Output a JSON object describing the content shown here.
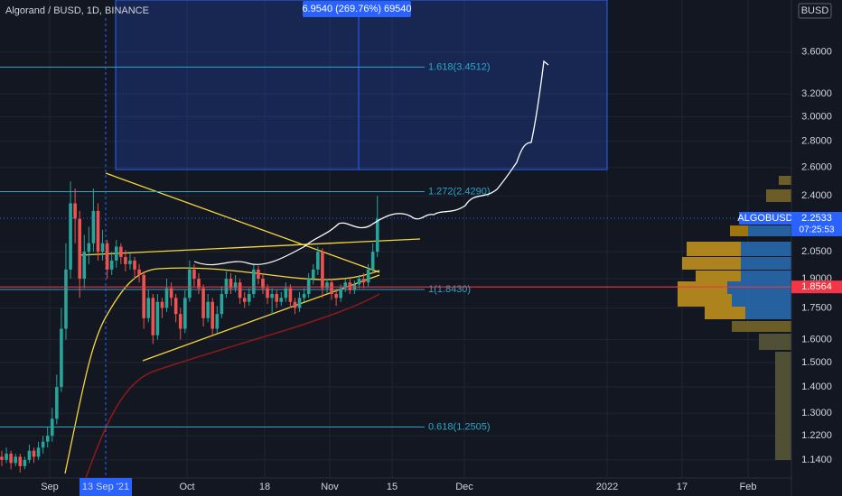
{
  "chart_data": {
    "type": "candlestick",
    "title": "Algorand / BUSD, 1D, BINANCE",
    "currency": "BUSD",
    "log_scale": true,
    "grid": true,
    "up_color": "#26a69a",
    "down_color": "#ef5350",
    "ylim": [
      1.056,
      4.17
    ],
    "yticks": [
      {
        "value": 1.14,
        "label": "1.1400"
      },
      {
        "value": 1.22,
        "label": "1.2200"
      },
      {
        "value": 1.3,
        "label": "1.3000"
      },
      {
        "value": 1.4,
        "label": "1.4000"
      },
      {
        "value": 1.5,
        "label": "1.5000"
      },
      {
        "value": 1.6,
        "label": "1.6000"
      },
      {
        "value": 1.75,
        "label": "1.7500"
      },
      {
        "value": 1.9,
        "label": "1.9000"
      },
      {
        "value": 2.05,
        "label": "2.0500"
      },
      {
        "value": 2.4,
        "label": "2.4000"
      },
      {
        "value": 2.6,
        "label": "2.6000"
      },
      {
        "value": 2.8,
        "label": "2.8000"
      },
      {
        "value": 3.0,
        "label": "3.0000"
      },
      {
        "value": 3.2,
        "label": "3.2000"
      },
      {
        "value": 3.6,
        "label": "3.6000"
      }
    ],
    "xticks": [
      "Sep",
      "13 Sep '21",
      "Oct",
      "18",
      "Nov",
      "15",
      "Dec",
      "2022",
      "17",
      "Feb"
    ],
    "series": [
      {
        "name": "ALGOBUSD",
        "values": [
          [
            1.15,
            1.17,
            1.12,
            1.14
          ],
          [
            1.14,
            1.18,
            1.13,
            1.16
          ],
          [
            1.16,
            1.17,
            1.11,
            1.13
          ],
          [
            1.13,
            1.16,
            1.12,
            1.15
          ],
          [
            1.15,
            1.16,
            1.1,
            1.12
          ],
          [
            1.12,
            1.15,
            1.11,
            1.14
          ],
          [
            1.14,
            1.19,
            1.13,
            1.17
          ],
          [
            1.17,
            1.18,
            1.13,
            1.15
          ],
          [
            1.15,
            1.2,
            1.14,
            1.18
          ],
          [
            1.18,
            1.22,
            1.16,
            1.2
          ],
          [
            1.2,
            1.25,
            1.18,
            1.22
          ],
          [
            1.22,
            1.32,
            1.2,
            1.28
          ],
          [
            1.28,
            1.45,
            1.26,
            1.4
          ],
          [
            1.4,
            1.75,
            1.38,
            1.65
          ],
          [
            1.65,
            2.1,
            1.6,
            1.95
          ],
          [
            1.95,
            2.5,
            1.9,
            2.35
          ],
          [
            2.35,
            2.45,
            2.1,
            2.25
          ],
          [
            2.25,
            2.3,
            1.8,
            1.9
          ],
          [
            1.9,
            2.15,
            1.85,
            2.05
          ],
          [
            2.05,
            2.2,
            1.98,
            2.1
          ],
          [
            2.1,
            2.45,
            2.05,
            2.3
          ],
          [
            2.3,
            2.35,
            2.0,
            2.05
          ],
          [
            2.05,
            2.18,
            2.0,
            2.1
          ],
          [
            2.1,
            2.12,
            1.9,
            1.95
          ],
          [
            1.95,
            2.05,
            1.92,
            2.0
          ],
          [
            2.0,
            2.12,
            1.96,
            2.08
          ],
          [
            2.08,
            2.1,
            1.98,
            2.02
          ],
          [
            2.02,
            2.06,
            1.94,
            1.98
          ],
          [
            1.98,
            2.04,
            1.95,
            2.0
          ],
          [
            2.0,
            2.02,
            1.9,
            1.95
          ],
          [
            1.95,
            1.98,
            1.88,
            1.92
          ],
          [
            1.92,
            1.94,
            1.65,
            1.7
          ],
          [
            1.7,
            1.84,
            1.68,
            1.8
          ],
          [
            1.8,
            1.82,
            1.58,
            1.62
          ],
          [
            1.62,
            1.82,
            1.6,
            1.78
          ],
          [
            1.78,
            1.8,
            1.7,
            1.75
          ],
          [
            1.75,
            1.9,
            1.73,
            1.85
          ],
          [
            1.85,
            1.88,
            1.76,
            1.8
          ],
          [
            1.8,
            1.82,
            1.68,
            1.72
          ],
          [
            1.72,
            1.75,
            1.6,
            1.65
          ],
          [
            1.65,
            1.84,
            1.63,
            1.8
          ],
          [
            1.8,
            2.0,
            1.78,
            1.95
          ],
          [
            1.95,
            1.98,
            1.86,
            1.9
          ],
          [
            1.9,
            1.93,
            1.82,
            1.85
          ],
          [
            1.85,
            1.87,
            1.66,
            1.7
          ],
          [
            1.7,
            1.82,
            1.68,
            1.78
          ],
          [
            1.78,
            1.8,
            1.62,
            1.65
          ],
          [
            1.65,
            1.76,
            1.63,
            1.72
          ],
          [
            1.72,
            1.86,
            1.7,
            1.82
          ],
          [
            1.82,
            1.94,
            1.8,
            1.9
          ],
          [
            1.9,
            1.93,
            1.82,
            1.85
          ],
          [
            1.85,
            1.92,
            1.83,
            1.88
          ],
          [
            1.88,
            1.9,
            1.77,
            1.8
          ],
          [
            1.8,
            1.83,
            1.75,
            1.78
          ],
          [
            1.78,
            1.85,
            1.76,
            1.82
          ],
          [
            1.82,
            1.98,
            1.8,
            1.95
          ],
          [
            1.95,
            1.97,
            1.87,
            1.9
          ],
          [
            1.9,
            1.92,
            1.82,
            1.85
          ],
          [
            1.85,
            1.87,
            1.77,
            1.8
          ],
          [
            1.8,
            1.85,
            1.72,
            1.82
          ],
          [
            1.82,
            1.84,
            1.75,
            1.78
          ],
          [
            1.78,
            1.83,
            1.76,
            1.8
          ],
          [
            1.8,
            1.88,
            1.78,
            1.85
          ],
          [
            1.85,
            1.87,
            1.75,
            1.78
          ],
          [
            1.78,
            1.8,
            1.72,
            1.75
          ],
          [
            1.75,
            1.83,
            1.73,
            1.8
          ],
          [
            1.8,
            1.85,
            1.78,
            1.82
          ],
          [
            1.82,
            1.93,
            1.8,
            1.9
          ],
          [
            1.9,
            1.98,
            1.87,
            1.95
          ],
          [
            1.95,
            2.08,
            1.92,
            2.05
          ],
          [
            2.05,
            2.07,
            1.8,
            1.85
          ],
          [
            1.85,
            1.9,
            1.82,
            1.88
          ],
          [
            1.88,
            1.9,
            1.79,
            1.82
          ],
          [
            1.82,
            1.84,
            1.76,
            1.8
          ],
          [
            1.8,
            1.87,
            1.78,
            1.85
          ],
          [
            1.85,
            1.9,
            1.83,
            1.88
          ],
          [
            1.88,
            1.9,
            1.82,
            1.84
          ],
          [
            1.84,
            1.89,
            1.82,
            1.87
          ],
          [
            1.87,
            1.92,
            1.85,
            1.9
          ],
          [
            1.9,
            1.93,
            1.85,
            1.88
          ],
          [
            1.88,
            1.98,
            1.86,
            1.95
          ],
          [
            1.95,
            2.1,
            1.93,
            2.05
          ],
          [
            2.05,
            2.4,
            2.02,
            2.25
          ]
        ]
      }
    ],
    "fib_levels": [
      {
        "value": 3.4512,
        "label": "1.618(3.4512)"
      },
      {
        "value": 2.429,
        "label": "1.272(2.4290)"
      },
      {
        "value": 1.843,
        "label": "1(1.8430)"
      },
      {
        "value": 1.2505,
        "label": "0.618(1.2505)"
      }
    ],
    "last_price": {
      "value": 2.2533,
      "label": "2.2533"
    },
    "countdown": "07:25:53",
    "marker_price": {
      "value": 1.8564,
      "label": "1.8564"
    },
    "measure_label": "6.9540 (269.76%) 69540"
  }
}
